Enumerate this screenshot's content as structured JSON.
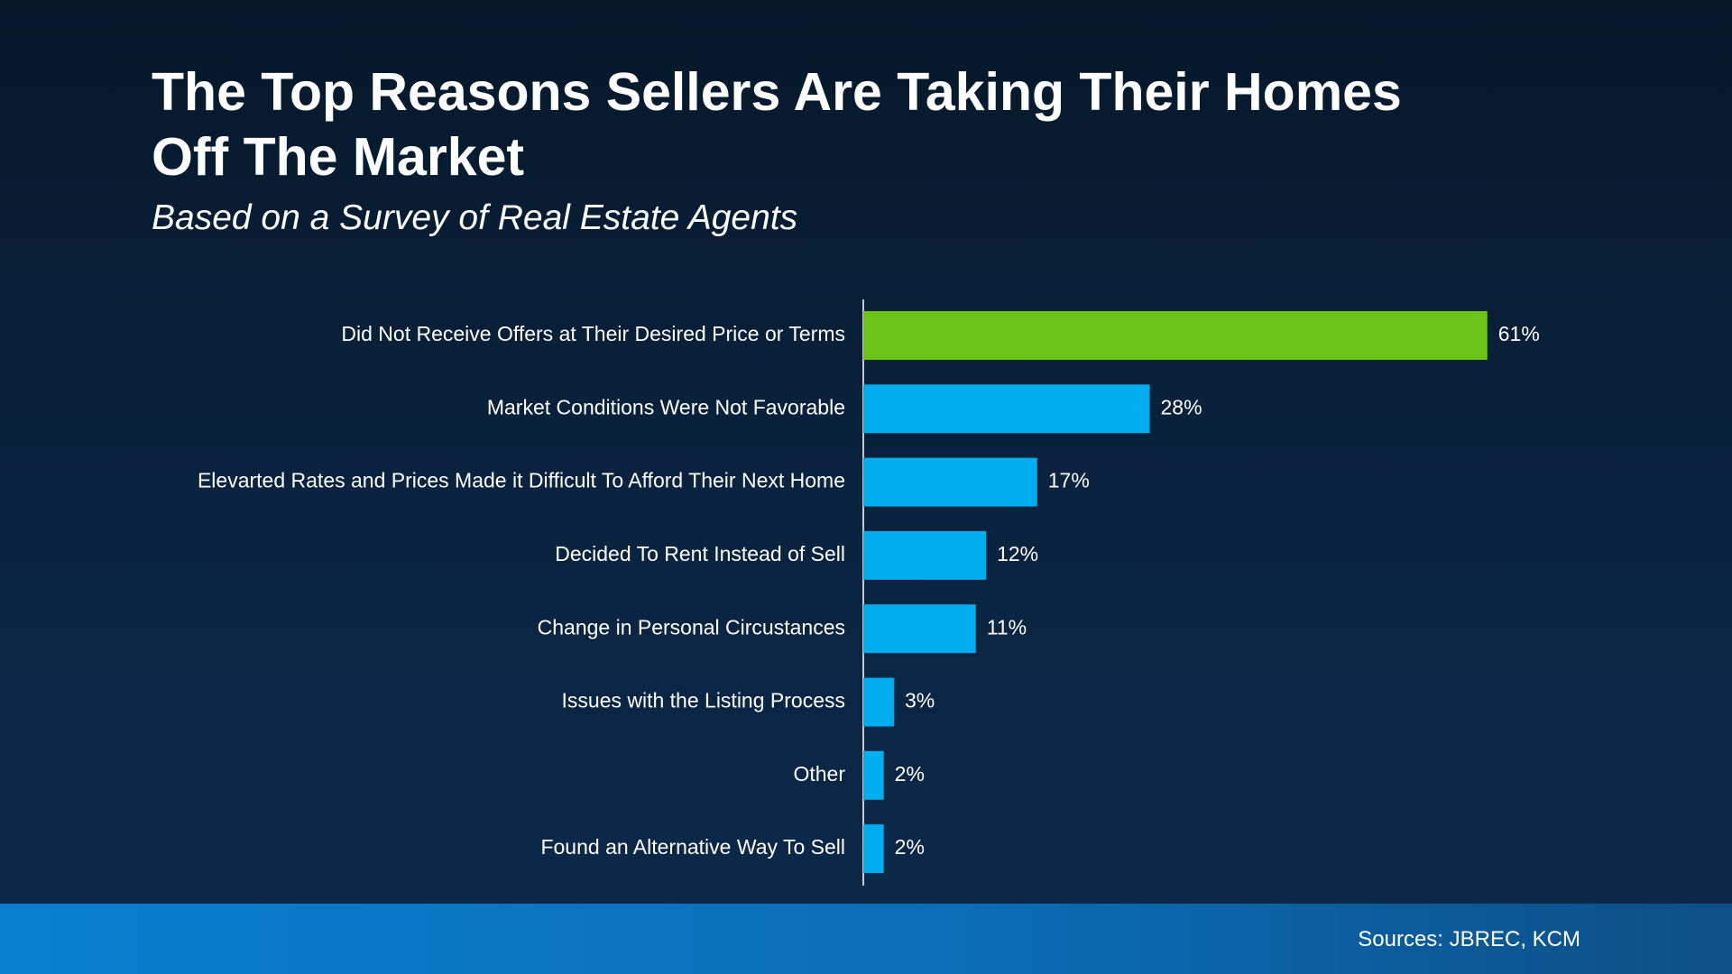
{
  "chart_data": {
    "type": "bar",
    "orientation": "horizontal",
    "title": "The Top Reasons Sellers Are Taking Their Homes Off The Market",
    "subtitle": "Based on a Survey of Real Estate Agents",
    "categories": [
      "Did Not Receive Offers at Their Desired Price or Terms",
      "Market Conditions Were Not Favorable",
      "Elevarted Rates and Prices Made it Difficult To Afford Their Next Home",
      "Decided To Rent Instead of Sell",
      "Change in Personal Circustances",
      "Issues with the Listing Process",
      "Other",
      "Found an Alternative Way To Sell"
    ],
    "values": [
      61,
      28,
      17,
      12,
      11,
      3,
      2,
      2
    ],
    "value_labels": [
      "61%",
      "28%",
      "17%",
      "12%",
      "11%",
      "3%",
      "2%",
      "2%"
    ],
    "colors": [
      "#6cc417",
      "#00adef",
      "#00adef",
      "#00adef",
      "#00adef",
      "#00adef",
      "#00adef",
      "#00adef"
    ],
    "source": "Sources: JBREC, KCM"
  }
}
